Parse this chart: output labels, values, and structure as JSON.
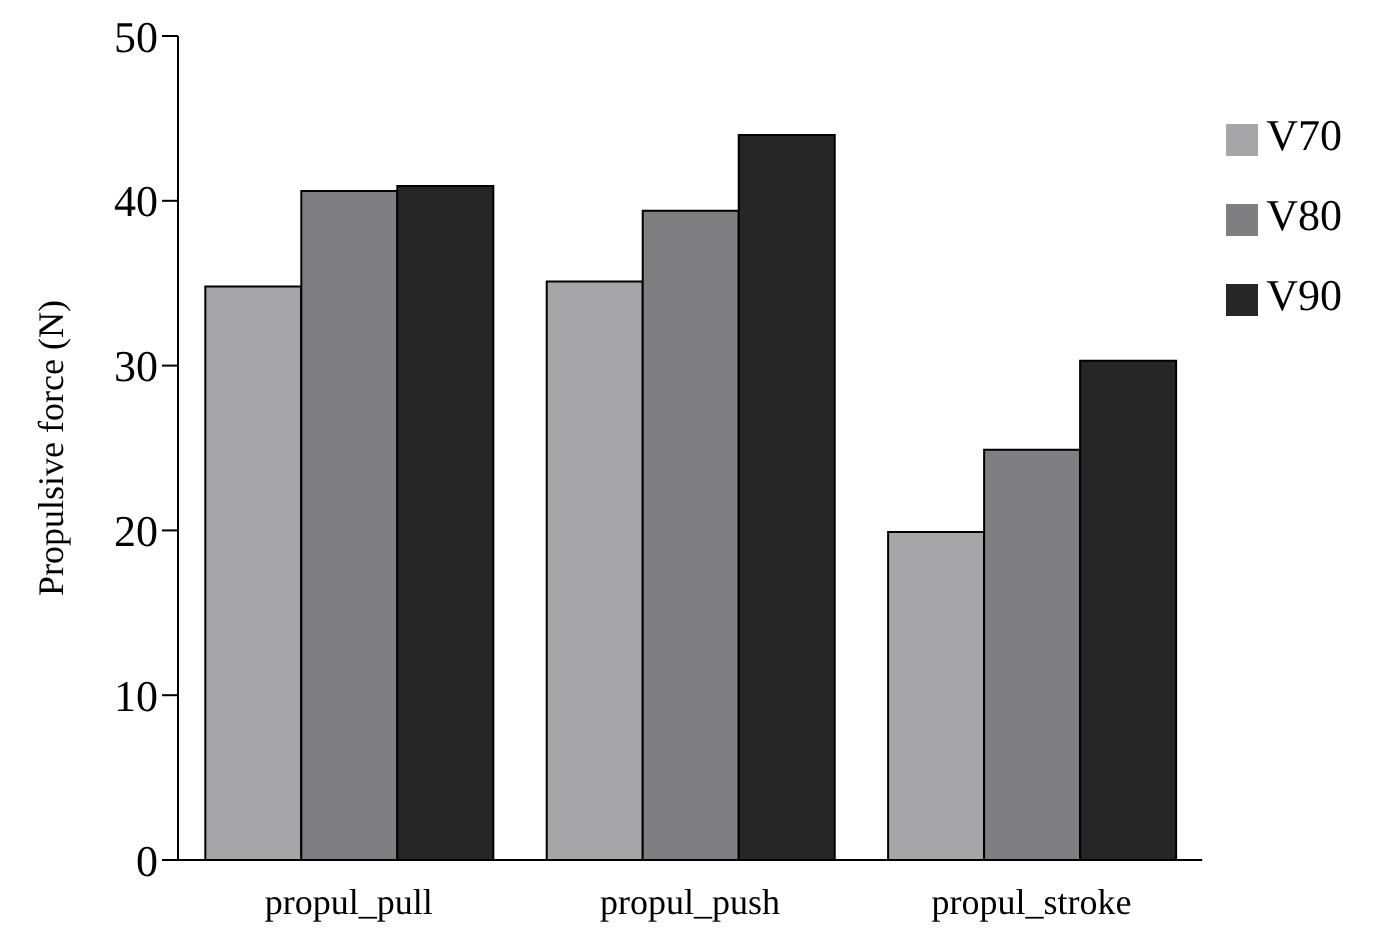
{
  "chart_data": {
    "type": "bar",
    "ylabel": "Propulsive force (N)",
    "categories": [
      "propul_pull",
      "propul_push",
      "propul_stroke"
    ],
    "series": [
      {
        "name": "V70",
        "color": "#a6a6a8",
        "values": [
          34.8,
          35.1,
          19.9
        ]
      },
      {
        "name": "V80",
        "color": "#7f7f81",
        "values": [
          40.6,
          39.4,
          24.9
        ]
      },
      {
        "name": "V90",
        "color": "#262626",
        "values": [
          40.9,
          44.0,
          30.3
        ]
      }
    ],
    "ylim": [
      0,
      50
    ],
    "yticks": [
      0,
      10,
      20,
      30,
      40,
      50
    ],
    "grid": false,
    "legend": "top right"
  }
}
